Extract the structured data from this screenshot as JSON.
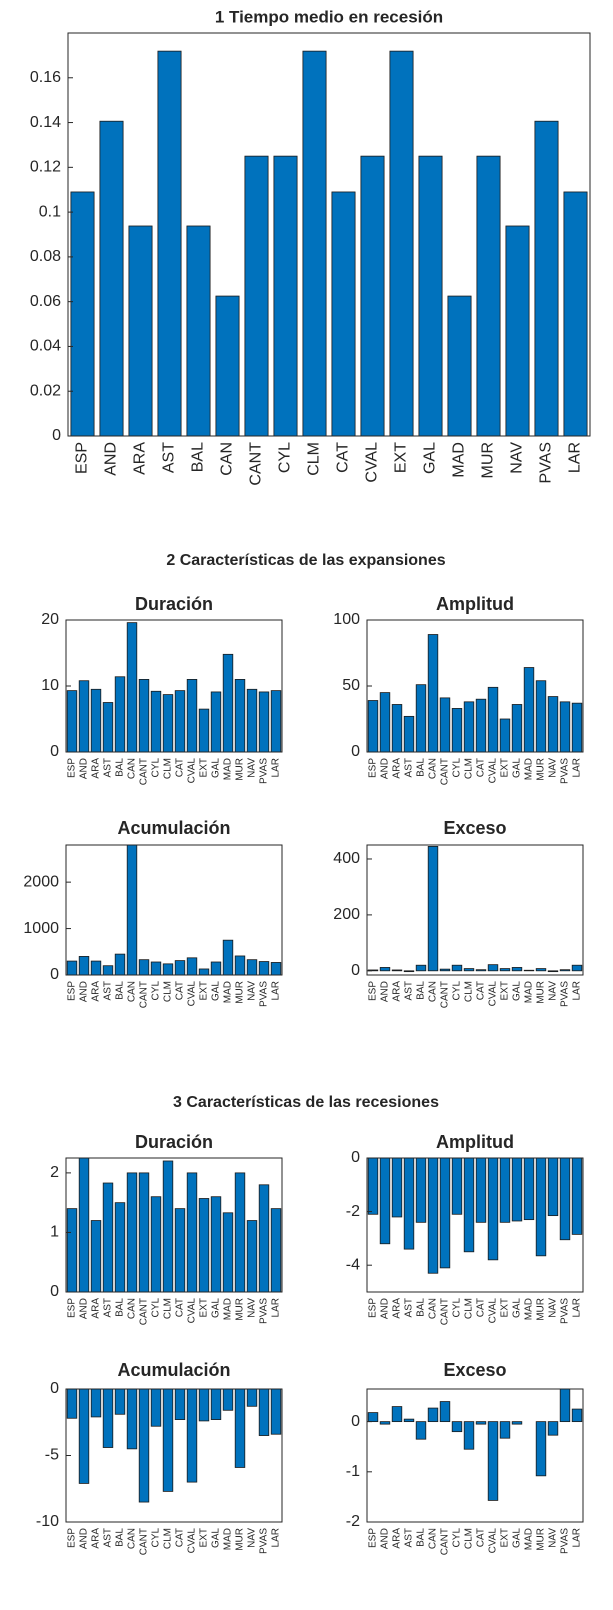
{
  "section_titles": [
    "2  Características de las expansiones",
    "3  Características de las recesiones"
  ],
  "chart_data": [
    {
      "type": "bar",
      "title": "1  Tiempo medio en recesión",
      "color": "#0072bd",
      "categories": [
        "ESP",
        "AND",
        "ARA",
        "AST",
        "BAL",
        "CAN",
        "CANT",
        "CYL",
        "CLM",
        "CAT",
        "CVAL",
        "EXT",
        "GAL",
        "MAD",
        "MUR",
        "NAV",
        "PVAS",
        "LAR"
      ],
      "values": [
        0.109,
        0.1406,
        0.0938,
        0.1719,
        0.0938,
        0.0625,
        0.125,
        0.125,
        0.1719,
        0.109,
        0.125,
        0.1719,
        0.125,
        0.0625,
        0.125,
        0.0938,
        0.1406,
        0.109
      ],
      "ylim": [
        0,
        0.18
      ],
      "yticks": [
        0,
        0.02,
        0.04,
        0.06,
        0.08,
        0.1,
        0.12,
        0.14,
        0.16
      ]
    },
    {
      "type": "bar",
      "title": "Duración",
      "color": "#0072bd",
      "categories": [
        "ESP",
        "AND",
        "ARA",
        "AST",
        "BAL",
        "CAN",
        "CANT",
        "CYL",
        "CLM",
        "CAT",
        "CVAL",
        "EXT",
        "GAL",
        "MAD",
        "MUR",
        "NAV",
        "PVAS",
        "LAR"
      ],
      "values": [
        9.3,
        10.8,
        9.5,
        7.5,
        11.4,
        19.6,
        11,
        9.2,
        8.7,
        9.3,
        11,
        6.5,
        9.1,
        14.8,
        11,
        9.5,
        9.1,
        9.3
      ],
      "ylim": [
        0,
        20
      ],
      "yticks": [
        0,
        10,
        20
      ]
    },
    {
      "type": "bar",
      "title": "Amplitud",
      "color": "#0072bd",
      "categories": [
        "ESP",
        "AND",
        "ARA",
        "AST",
        "BAL",
        "CAN",
        "CANT",
        "CYL",
        "CLM",
        "CAT",
        "CVAL",
        "EXT",
        "GAL",
        "MAD",
        "MUR",
        "NAV",
        "PVAS",
        "LAR"
      ],
      "values": [
        39,
        45,
        36,
        27,
        51,
        89,
        41,
        33,
        38,
        40,
        49,
        25,
        36,
        64,
        54,
        42,
        38,
        37
      ],
      "ylim": [
        0,
        100
      ],
      "yticks": [
        0,
        50,
        100
      ]
    },
    {
      "type": "bar",
      "title": "Acumulación",
      "color": "#0072bd",
      "categories": [
        "ESP",
        "AND",
        "ARA",
        "AST",
        "BAL",
        "CAN",
        "CANT",
        "CYL",
        "CLM",
        "CAT",
        "CVAL",
        "EXT",
        "GAL",
        "MAD",
        "MUR",
        "NAV",
        "PVAS",
        "LAR"
      ],
      "values": [
        300,
        400,
        300,
        200,
        450,
        2800,
        330,
        280,
        240,
        310,
        370,
        130,
        280,
        750,
        410,
        330,
        290,
        270
      ],
      "ylim": [
        0,
        2800
      ],
      "yticks": [
        0,
        1000,
        2000
      ]
    },
    {
      "type": "bar",
      "title": "Exceso",
      "color": "#0072bd",
      "categories": [
        "ESP",
        "AND",
        "ARA",
        "AST",
        "BAL",
        "CAN",
        "CANT",
        "CYL",
        "CLM",
        "CAT",
        "CVAL",
        "EXT",
        "GAL",
        "MAD",
        "MUR",
        "NAV",
        "PVAS",
        "LAR"
      ],
      "values": [
        3,
        12,
        3,
        -3,
        20,
        445,
        6,
        20,
        8,
        4,
        22,
        8,
        12,
        2,
        8,
        -3,
        4,
        20
      ],
      "ylim": [
        -15,
        450
      ],
      "yticks": [
        0,
        200,
        400
      ]
    },
    {
      "type": "bar",
      "title": "Duración",
      "color": "#0072bd",
      "categories": [
        "ESP",
        "AND",
        "ARA",
        "AST",
        "BAL",
        "CAN",
        "CANT",
        "CYL",
        "CLM",
        "CAT",
        "CVAL",
        "EXT",
        "GAL",
        "MAD",
        "MUR",
        "NAV",
        "PVAS",
        "LAR"
      ],
      "values": [
        1.4,
        2.25,
        1.2,
        1.83,
        1.5,
        2,
        2,
        1.6,
        2.2,
        1.4,
        2,
        1.57,
        1.6,
        1.33,
        2,
        1.2,
        1.8,
        1.4
      ],
      "ylim": [
        0,
        2.25
      ],
      "yticks": [
        0,
        1,
        2
      ]
    },
    {
      "type": "bar",
      "title": "Amplitud",
      "color": "#0072bd",
      "categories": [
        "ESP",
        "AND",
        "ARA",
        "AST",
        "BAL",
        "CAN",
        "CANT",
        "CYL",
        "CLM",
        "CAT",
        "CVAL",
        "EXT",
        "GAL",
        "MAD",
        "MUR",
        "NAV",
        "PVAS",
        "LAR"
      ],
      "values": [
        -2.1,
        -3.2,
        -2.2,
        -3.4,
        -2.4,
        -4.3,
        -4.1,
        -2.1,
        -3.5,
        -2.4,
        -3.8,
        -2.4,
        -2.35,
        -2.3,
        -3.65,
        -2.15,
        -3.05,
        -2.85
      ],
      "ylim": [
        -5,
        0
      ],
      "yticks": [
        -4,
        -2,
        0
      ]
    },
    {
      "type": "bar",
      "title": "Acumulación",
      "color": "#0072bd",
      "categories": [
        "ESP",
        "AND",
        "ARA",
        "AST",
        "BAL",
        "CAN",
        "CANT",
        "CYL",
        "CLM",
        "CAT",
        "CVAL",
        "EXT",
        "GAL",
        "MAD",
        "MUR",
        "NAV",
        "PVAS",
        "LAR"
      ],
      "values": [
        -2.2,
        -7.1,
        -2.1,
        -4.4,
        -1.9,
        -4.5,
        -8.5,
        -2.8,
        -7.7,
        -2.3,
        -7,
        -2.4,
        -2.3,
        -1.6,
        -5.9,
        -1.3,
        -3.5,
        -3.4
      ],
      "ylim": [
        -10,
        0
      ],
      "yticks": [
        -10,
        -5,
        0
      ]
    },
    {
      "type": "bar",
      "title": "Exceso",
      "color": "#0072bd",
      "categories": [
        "ESP",
        "AND",
        "ARA",
        "AST",
        "BAL",
        "CAN",
        "CANT",
        "CYL",
        "CLM",
        "CAT",
        "CVAL",
        "EXT",
        "GAL",
        "MAD",
        "MUR",
        "NAV",
        "PVAS",
        "LAR"
      ],
      "values": [
        0.18,
        -0.05,
        0.3,
        0.05,
        -0.35,
        0.27,
        0.4,
        -0.2,
        -0.55,
        -0.05,
        -1.57,
        -0.33,
        -0.05,
        0,
        -1.08,
        -0.27,
        0.65,
        0.25
      ],
      "ylim": [
        -2,
        0.65
      ],
      "yticks": [
        -2,
        -1,
        0
      ]
    }
  ]
}
